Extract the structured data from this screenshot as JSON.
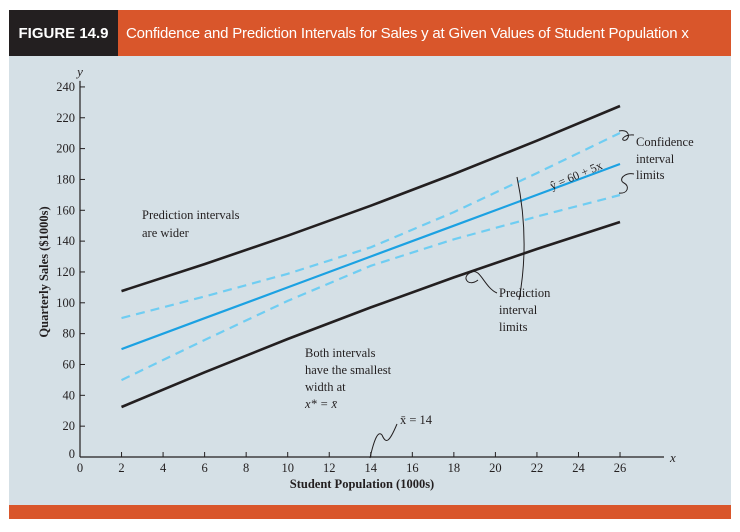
{
  "header": {
    "figure_label": "FIGURE 14.9",
    "title": "Confidence and Prediction Intervals for Sales y at Given Values of Student Population x"
  },
  "colors": {
    "header_dark": "#231f20",
    "accent": "#d9562b",
    "panel": "#d5e0e6",
    "regression": "#1ba1e2",
    "confidence": "#6fcdf2",
    "prediction": "#231f20"
  },
  "chart_data": {
    "type": "line",
    "title": "Confidence and Prediction Intervals for Sales y at Given Values of Student Population x",
    "xlabel": "Student Population (1000s)",
    "ylabel": "Quarterly Sales ($1000s)",
    "x_axis_symbol": "x",
    "y_axis_symbol": "y",
    "xlim": [
      0,
      28
    ],
    "ylim": [
      0,
      240
    ],
    "xticks": [
      "0",
      "2",
      "4",
      "6",
      "8",
      "10",
      "12",
      "14",
      "16",
      "18",
      "20",
      "22",
      "24",
      "26"
    ],
    "yticks": [
      "0",
      "20",
      "40",
      "60",
      "80",
      "100",
      "120",
      "140",
      "160",
      "180",
      "200",
      "220",
      "240"
    ],
    "grid": false,
    "x": [
      2,
      6,
      10,
      14,
      18,
      22,
      26
    ],
    "series": [
      {
        "name": "Regression line",
        "style": "solid-blue",
        "values": [
          70,
          90,
          110,
          130,
          150,
          170,
          190
        ]
      },
      {
        "name": "Confidence upper",
        "style": "dashed-lightblue",
        "values": [
          90.1,
          104.1,
          118.8,
          136,
          158.8,
          184.1,
          210.1
        ]
      },
      {
        "name": "Confidence lower",
        "style": "dashed-lightblue",
        "values": [
          49.9,
          75.9,
          101.2,
          124,
          141.2,
          155.9,
          169.9
        ]
      },
      {
        "name": "Prediction upper",
        "style": "solid-black",
        "values": [
          107.6,
          125.1,
          143.5,
          163,
          183.5,
          205.1,
          227.6
        ]
      },
      {
        "name": "Prediction lower",
        "style": "solid-black",
        "values": [
          32.4,
          54.9,
          76.5,
          97,
          116.5,
          134.9,
          152.4
        ]
      }
    ],
    "annotations": {
      "equation": "ŷ = 60 + 5x",
      "confidence": [
        "Confidence",
        "interval",
        "limits"
      ],
      "prediction": [
        "Prediction",
        "interval",
        "limits"
      ],
      "wider": [
        "Prediction intervals",
        "are wider"
      ],
      "smallest": [
        "Both intervals",
        "have the smallest",
        "width at",
        "x* = x̄"
      ],
      "mean": "x̄ = 14"
    }
  }
}
